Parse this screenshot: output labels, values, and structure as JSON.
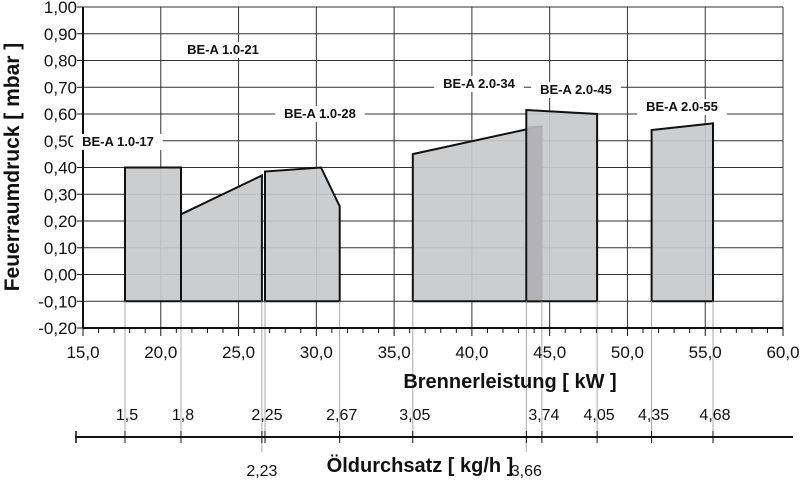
{
  "chart_data": {
    "type": "area",
    "title": "",
    "xlabel": "Brennerleistung [ kW ]",
    "ylabel": "Feuerraumdruck [ mbar ]",
    "x2label": "Öldurchsatz [ kg/h ]",
    "xlim": [
      15,
      60
    ],
    "ylim": [
      -0.2,
      1.0
    ],
    "grid": true,
    "x_ticks": [
      15,
      20,
      25,
      30,
      35,
      40,
      45,
      50,
      55,
      60
    ],
    "x_tick_labels": [
      "15,0",
      "20,0",
      "25,0",
      "30,0",
      "35,0",
      "40,0",
      "45,0",
      "50,0",
      "55,0",
      "60,0"
    ],
    "y_ticks": [
      1.0,
      0.9,
      0.8,
      0.7,
      0.6,
      0.5,
      0.4,
      0.3,
      0.2,
      0.1,
      0.0,
      -0.1,
      -0.2
    ],
    "y_tick_labels": [
      "1,00",
      "0,90",
      "0,80",
      "0,70",
      "0,60",
      "0,50",
      "0,40",
      "0,30",
      "0,20",
      "0,10",
      "0,00",
      "-0,10",
      "-0,20"
    ],
    "fill_color": "#c8c9cb",
    "overlap_color": "#a9aaac",
    "series": [
      {
        "name": "BE-A 1.0-17",
        "points": [
          [
            17.7,
            -0.1
          ],
          [
            17.7,
            0.4
          ],
          [
            21.3,
            0.4
          ],
          [
            21.3,
            -0.1
          ]
        ]
      },
      {
        "name": "BE-A 1.0-21",
        "points": [
          [
            21.3,
            -0.1
          ],
          [
            21.3,
            0.225
          ],
          [
            26.5,
            0.37
          ],
          [
            26.5,
            -0.1
          ]
        ]
      },
      {
        "name": "BE-A 1.0-28",
        "points": [
          [
            26.7,
            -0.1
          ],
          [
            26.7,
            0.385
          ],
          [
            30.3,
            0.4
          ],
          [
            31.5,
            0.255
          ],
          [
            31.5,
            -0.1
          ]
        ]
      },
      {
        "name": "BE-A 2.0-34",
        "points": [
          [
            36.2,
            -0.1
          ],
          [
            36.2,
            0.45
          ],
          [
            44.5,
            0.555
          ],
          [
            44.5,
            -0.1
          ]
        ]
      },
      {
        "name": "BE-A 2.0-45",
        "points": [
          [
            43.5,
            -0.1
          ],
          [
            43.5,
            0.615
          ],
          [
            48.05,
            0.6
          ],
          [
            48.05,
            -0.1
          ]
        ]
      },
      {
        "name": "BE-A 2.0-55",
        "points": [
          [
            51.55,
            -0.1
          ],
          [
            51.55,
            0.54
          ],
          [
            55.5,
            0.565
          ],
          [
            55.5,
            -0.1
          ]
        ]
      }
    ],
    "oil_flow_scale": [
      {
        "kw": 17.7,
        "label": "1,5",
        "side": "top"
      },
      {
        "kw": 21.3,
        "label": "1,8",
        "side": "top"
      },
      {
        "kw": 26.5,
        "label": "2,23",
        "side": "bottom"
      },
      {
        "kw": 26.7,
        "label": "2,25",
        "side": "top"
      },
      {
        "kw": 31.5,
        "label": "2,67",
        "side": "top"
      },
      {
        "kw": 36.2,
        "label": "3,05",
        "side": "top"
      },
      {
        "kw": 43.5,
        "label": "3,66",
        "side": "bottom"
      },
      {
        "kw": 44.5,
        "label": "3,74",
        "side": "top"
      },
      {
        "kw": 48.05,
        "label": "4,05",
        "side": "top"
      },
      {
        "kw": 51.55,
        "label": "4,35",
        "side": "top"
      },
      {
        "kw": 55.5,
        "label": "4,68",
        "side": "top"
      }
    ]
  }
}
